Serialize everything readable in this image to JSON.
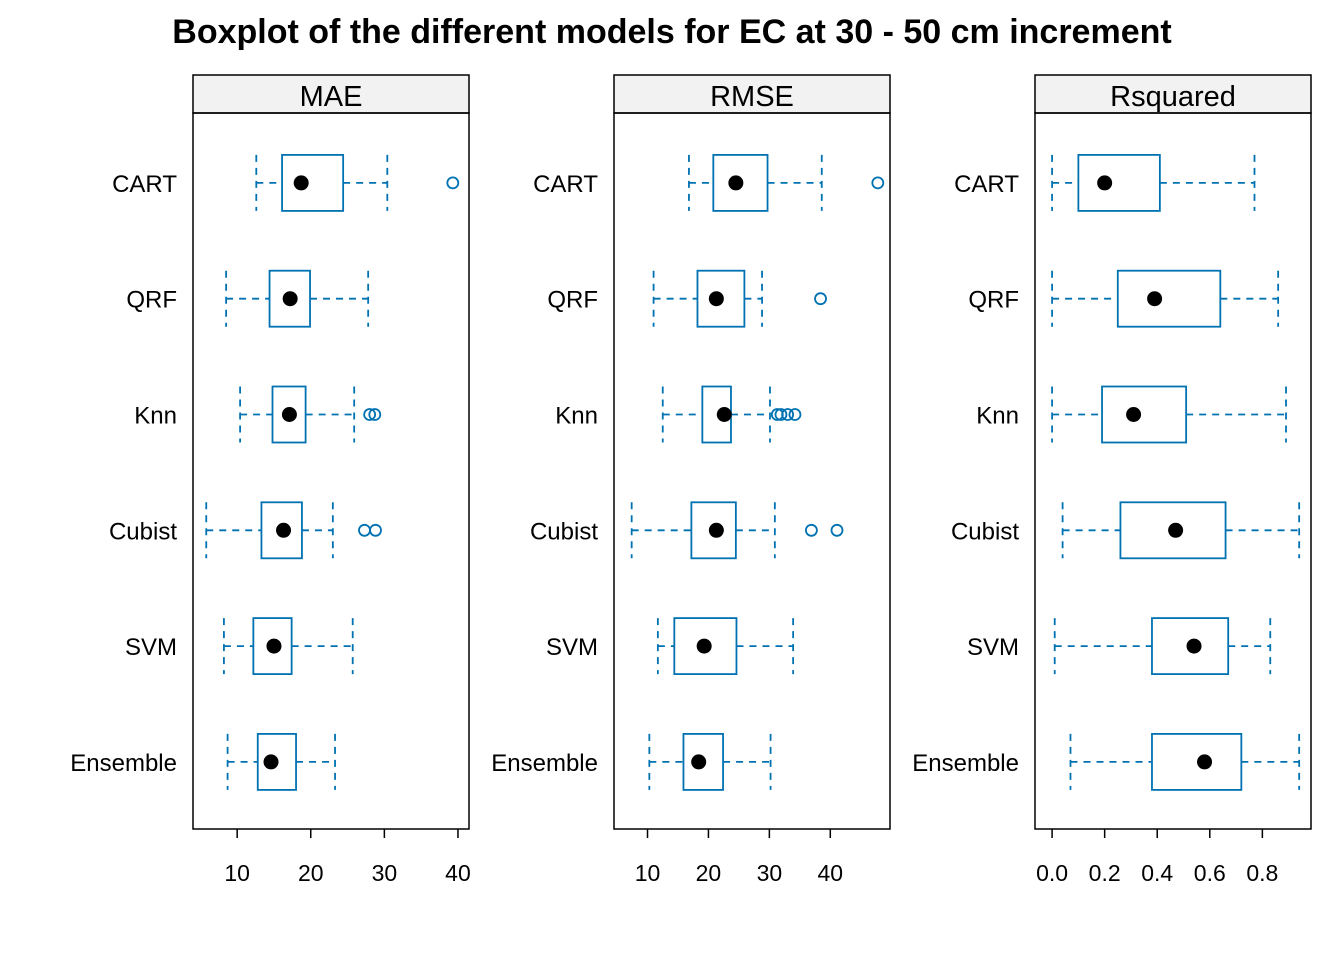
{
  "colors": {
    "box": "#0072B2",
    "median": "#000000",
    "strip_fill": "#f2f2f2",
    "frame": "#000000"
  },
  "chart_data": {
    "type": "boxplot",
    "title": "Boxplot of the different models for EC at 30 - 50 cm increment",
    "orientation": "horizontal",
    "categories": [
      "Ensemble",
      "SVM",
      "Cubist",
      "Knn",
      "QRF",
      "CART"
    ],
    "panels": [
      {
        "name": "MAE",
        "xlim": [
          4,
          41.5
        ],
        "ticks": [
          10,
          20,
          30,
          40
        ],
        "boxes": [
          {
            "model": "Ensemble",
            "whisker_low": 8.7,
            "q1": 12.8,
            "median": 14.6,
            "q3": 18.0,
            "whisker_high": 23.3,
            "outliers": []
          },
          {
            "model": "SVM",
            "whisker_low": 8.2,
            "q1": 12.2,
            "median": 15.0,
            "q3": 17.4,
            "whisker_high": 25.7,
            "outliers": []
          },
          {
            "model": "Cubist",
            "whisker_low": 5.8,
            "q1": 13.3,
            "median": 16.3,
            "q3": 18.8,
            "whisker_high": 23.0,
            "outliers": [
              27.3,
              28.8
            ]
          },
          {
            "model": "Knn",
            "whisker_low": 10.4,
            "q1": 14.8,
            "median": 17.1,
            "q3": 19.3,
            "whisker_high": 25.9,
            "outliers": [
              28.0,
              28.7
            ]
          },
          {
            "model": "QRF",
            "whisker_low": 8.5,
            "q1": 14.4,
            "median": 17.2,
            "q3": 19.9,
            "whisker_high": 27.8,
            "outliers": []
          },
          {
            "model": "CART",
            "whisker_low": 12.6,
            "q1": 16.1,
            "median": 18.7,
            "q3": 24.4,
            "whisker_high": 30.4,
            "outliers": [
              39.3
            ]
          }
        ]
      },
      {
        "name": "RMSE",
        "xlim": [
          4.5,
          49.8
        ],
        "ticks": [
          10,
          20,
          30,
          40
        ],
        "boxes": [
          {
            "model": "Ensemble",
            "whisker_low": 10.3,
            "q1": 15.9,
            "median": 18.4,
            "q3": 22.4,
            "whisker_high": 30.2,
            "outliers": []
          },
          {
            "model": "SVM",
            "whisker_low": 11.7,
            "q1": 14.4,
            "median": 19.3,
            "q3": 24.6,
            "whisker_high": 33.9,
            "outliers": []
          },
          {
            "model": "Cubist",
            "whisker_low": 7.4,
            "q1": 17.2,
            "median": 21.3,
            "q3": 24.5,
            "whisker_high": 30.9,
            "outliers": [
              36.9,
              41.1
            ]
          },
          {
            "model": "Knn",
            "whisker_low": 12.5,
            "q1": 19.0,
            "median": 22.6,
            "q3": 23.7,
            "whisker_high": 30.1,
            "outliers": [
              31.3,
              31.9,
              33.0,
              34.2
            ]
          },
          {
            "model": "QRF",
            "whisker_low": 11.0,
            "q1": 18.2,
            "median": 21.3,
            "q3": 25.9,
            "whisker_high": 28.8,
            "outliers": [
              38.4
            ]
          },
          {
            "model": "CART",
            "whisker_low": 16.8,
            "q1": 20.8,
            "median": 24.5,
            "q3": 29.7,
            "whisker_high": 38.6,
            "outliers": [
              47.8
            ]
          }
        ]
      },
      {
        "name": "Rsquared",
        "xlim": [
          -0.065,
          0.985
        ],
        "ticks": [
          0.0,
          0.2,
          0.4,
          0.6,
          0.8
        ],
        "tick_labels": [
          "0.0",
          "0.2",
          "0.4",
          "0.6",
          "0.8"
        ],
        "boxes": [
          {
            "model": "Ensemble",
            "whisker_low": 0.07,
            "q1": 0.38,
            "median": 0.58,
            "q3": 0.72,
            "whisker_high": 0.94,
            "outliers": []
          },
          {
            "model": "SVM",
            "whisker_low": 0.01,
            "q1": 0.38,
            "median": 0.54,
            "q3": 0.67,
            "whisker_high": 0.83,
            "outliers": []
          },
          {
            "model": "Cubist",
            "whisker_low": 0.04,
            "q1": 0.26,
            "median": 0.47,
            "q3": 0.66,
            "whisker_high": 0.94,
            "outliers": []
          },
          {
            "model": "Knn",
            "whisker_low": 0.0,
            "q1": 0.19,
            "median": 0.31,
            "q3": 0.51,
            "whisker_high": 0.89,
            "outliers": []
          },
          {
            "model": "QRF",
            "whisker_low": 0.0,
            "q1": 0.25,
            "median": 0.39,
            "q3": 0.64,
            "whisker_high": 0.86,
            "outliers": []
          },
          {
            "model": "CART",
            "whisker_low": 0.0,
            "q1": 0.1,
            "median": 0.2,
            "q3": 0.41,
            "whisker_high": 0.77,
            "outliers": []
          }
        ]
      }
    ],
    "grid": false,
    "legend": "none"
  }
}
